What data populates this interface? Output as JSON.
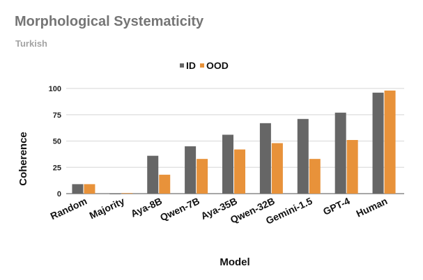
{
  "chart_data": {
    "type": "bar",
    "title": "Morphological Systematicity",
    "subtitle": "Turkish",
    "xlabel": "Model",
    "ylabel": "Coherence",
    "ylim": [
      0,
      100
    ],
    "yticks": [
      0,
      25,
      50,
      75,
      100
    ],
    "grid": true,
    "legend_position": "top-center",
    "categories": [
      "Random",
      "Majority",
      "Aya-8B",
      "Qwen-7B",
      "Aya-35B",
      "Qwen-32B",
      "Gemini-1.5",
      "GPT-4",
      "Human"
    ],
    "series": [
      {
        "name": "ID",
        "color": "#666666",
        "values": [
          9,
          0,
          36,
          45,
          56,
          67,
          71,
          77,
          96
        ]
      },
      {
        "name": "OOD",
        "color": "#e8923a",
        "values": [
          9,
          0.5,
          18,
          33,
          42,
          48,
          33,
          51,
          98
        ]
      }
    ]
  }
}
